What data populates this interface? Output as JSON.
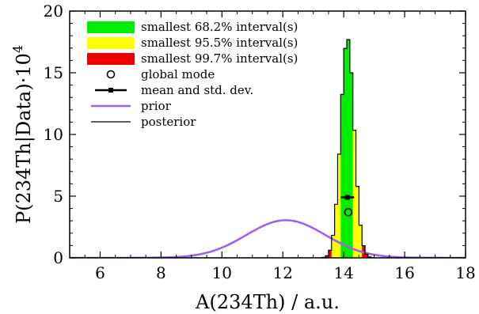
{
  "chart_data": {
    "type": "area",
    "xlabel": "A(234Th) / a.u.",
    "ylabel_prefix": "P(234Th|Data)·10",
    "ylabel_exp": "4",
    "xlim": [
      5,
      18
    ],
    "ylim": [
      0,
      20
    ],
    "xticks": [
      6,
      8,
      10,
      12,
      14,
      16,
      18
    ],
    "yticks": [
      0,
      5,
      10,
      15,
      20
    ],
    "legend_position": "top-left",
    "legend": [
      {
        "key": "int68",
        "label": "smallest 68.2% interval(s)",
        "kind": "patch",
        "color": "#00ee00"
      },
      {
        "key": "int95",
        "label": "smallest 95.5% interval(s)",
        "kind": "patch",
        "color": "#ffff00"
      },
      {
        "key": "int99",
        "label": "smallest 99.7% interval(s)",
        "kind": "patch",
        "color": "#ee0000"
      },
      {
        "key": "mode",
        "label": "global mode",
        "kind": "circle",
        "color": "#000000"
      },
      {
        "key": "mean",
        "label": "mean and std. dev.",
        "kind": "errorbar",
        "color": "#000000"
      },
      {
        "key": "prior",
        "label": "prior",
        "kind": "line",
        "color": "#a060f0"
      },
      {
        "key": "posterior",
        "label": "posterior",
        "kind": "line",
        "color": "#000000"
      }
    ],
    "prior": {
      "mean": 12.1,
      "sigma": 1.3,
      "peak": 3.05
    },
    "posterior": {
      "mean": 14.12,
      "sigma": 0.22,
      "peak": 17.85,
      "bin_width": 0.1
    },
    "intervals": {
      "i68": [
        13.9,
        14.35
      ],
      "i95": [
        13.65,
        14.55
      ],
      "i99": [
        13.45,
        14.75
      ]
    },
    "global_mode": {
      "x": 14.15,
      "y": 3.7
    },
    "mean_marker": {
      "x": 14.12,
      "y": 4.9,
      "std": 0.22
    },
    "colors": {
      "prior": "#a060f0",
      "posterior": "#000000",
      "int68": "#00ee00",
      "int95": "#ffff00",
      "int99": "#ee0000"
    }
  }
}
